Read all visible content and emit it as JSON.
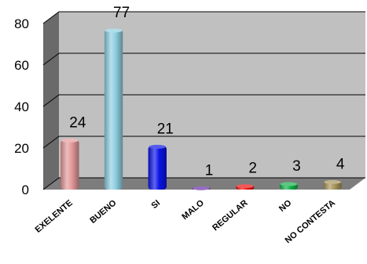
{
  "chart_data": {
    "type": "bar",
    "title": "",
    "xlabel": "",
    "ylabel": "",
    "categories": [
      "EXELENTE",
      "BUENO",
      "SI",
      "MALO",
      "REGULAR",
      "NO",
      "NO CONTESTA"
    ],
    "values": [
      24,
      77,
      21,
      1,
      2,
      3,
      4
    ],
    "data_labels": [
      "24",
      "77",
      "21",
      "1",
      "2",
      "3",
      "4"
    ],
    "ylim": [
      0,
      80
    ],
    "yticks": [
      "0",
      "20",
      "40",
      "60",
      "80"
    ],
    "grid": true,
    "legend": "none",
    "style": "3d",
    "colors": [
      "#e59a9c",
      "#8fcfe0",
      "#0a14e6",
      "#6b2fa8",
      "#ee1111",
      "#14b04a",
      "#a8955a"
    ],
    "background_color": "#c0c0c0"
  }
}
